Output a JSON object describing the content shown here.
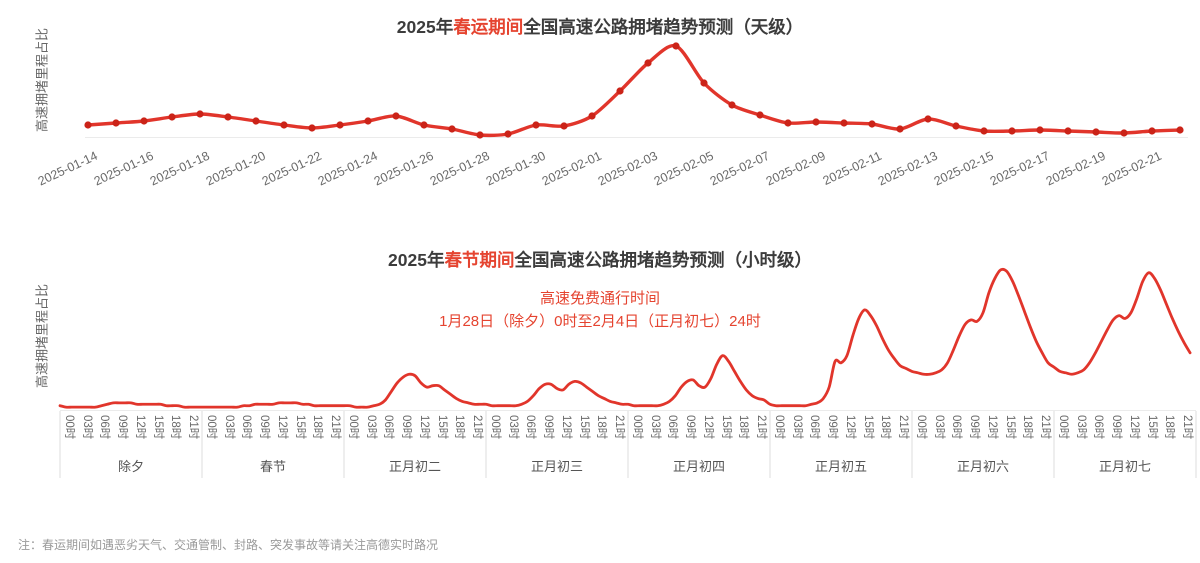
{
  "colors": {
    "title": "#3c3c3c",
    "red_text": "#e54430",
    "line": "#e1352b",
    "dot": "#cb2318",
    "tick_text": "#6a6a6a",
    "day_text": "#555555",
    "ylabel": "#666666",
    "note_text": "#9a9a9a",
    "baseline": "#ebebeb",
    "separator": "#dedede"
  },
  "note": "注：春运期间如遇恶劣天气、交通管制、封路、突发事故等请关注高德实时路况",
  "chart_data": [
    {
      "type": "line",
      "id": "daily",
      "title": "2025年春运期间全国高速公路拥堵趋势预测（天级）",
      "title_parts": {
        "prefix": "2025年",
        "highlight": "春运期间",
        "suffix": "全国高速公路拥堵趋势预测（天级）"
      },
      "ylabel": "高速拥堵里程占比",
      "grid": false,
      "ylim": [
        0,
        100
      ],
      "x": [
        "2025-01-14",
        "2025-01-15",
        "2025-01-16",
        "2025-01-17",
        "2025-01-18",
        "2025-01-19",
        "2025-01-20",
        "2025-01-21",
        "2025-01-22",
        "2025-01-23",
        "2025-01-24",
        "2025-01-25",
        "2025-01-26",
        "2025-01-27",
        "2025-01-28",
        "2025-01-29",
        "2025-01-30",
        "2025-01-31",
        "2025-02-01",
        "2025-02-02",
        "2025-02-03",
        "2025-02-04",
        "2025-02-05",
        "2025-02-06",
        "2025-02-07",
        "2025-02-08",
        "2025-02-09",
        "2025-02-10",
        "2025-02-11",
        "2025-02-12",
        "2025-02-13",
        "2025-02-14",
        "2025-02-15",
        "2025-02-16",
        "2025-02-17",
        "2025-02-18",
        "2025-02-19",
        "2025-02-20",
        "2025-02-21",
        "2025-02-22"
      ],
      "values": [
        12,
        14,
        16,
        20,
        23,
        20,
        16,
        12,
        9,
        12,
        16,
        21,
        12,
        8,
        2,
        3,
        12,
        11,
        21,
        46,
        74,
        91,
        54,
        32,
        22,
        14,
        15,
        14,
        13,
        8,
        18,
        11,
        6,
        6,
        7,
        6,
        5,
        4,
        6,
        7
      ],
      "x_tick_labels": [
        "2025-01-14",
        "2025-01-16",
        "2025-01-18",
        "2025-01-20",
        "2025-01-22",
        "2025-01-24",
        "2025-01-26",
        "2025-01-28",
        "2025-01-30",
        "2025-02-01",
        "2025-02-03",
        "2025-02-05",
        "2025-02-07",
        "2025-02-09",
        "2025-02-11",
        "2025-02-13",
        "2025-02-15",
        "2025-02-17",
        "2025-02-19",
        "2025-02-21"
      ]
    },
    {
      "type": "line",
      "id": "hourly",
      "title": "2025年春节期间全国高速公路拥堵趋势预测（小时级）",
      "title_parts": {
        "prefix": "2025年",
        "highlight": "春节期间",
        "suffix": "全国高速公路拥堵趋势预测（小时级）"
      },
      "ylabel": "高速拥堵里程占比",
      "annotation": {
        "line1": "高速免费通行时间",
        "line2": "1月28日（除夕）0时至2月4日（正月初七）24时"
      },
      "grid": false,
      "ylim": [
        0,
        100
      ],
      "hour_tick_labels": [
        "00时",
        "03时",
        "06时",
        "09时",
        "12时",
        "15时",
        "18时",
        "21时"
      ],
      "days": [
        {
          "label": "除夕",
          "values": [
            3,
            2,
            2,
            2,
            2,
            2,
            2,
            3,
            4,
            5,
            5,
            5,
            5,
            4,
            4,
            4,
            4,
            4,
            3,
            3,
            3,
            2,
            2,
            2
          ]
        },
        {
          "label": "春节",
          "values": [
            2,
            2,
            2,
            2,
            2,
            2,
            2,
            3,
            3,
            4,
            4,
            4,
            4,
            5,
            5,
            5,
            5,
            4,
            4,
            3,
            3,
            3,
            3,
            3
          ]
        },
        {
          "label": "正月初二",
          "values": [
            3,
            3,
            2,
            2,
            2,
            3,
            4,
            7,
            13,
            19,
            23,
            25,
            24,
            19,
            16,
            17,
            17,
            14,
            11,
            8,
            6,
            5,
            4,
            4
          ]
        },
        {
          "label": "正月初三",
          "values": [
            4,
            3,
            3,
            3,
            3,
            3,
            4,
            6,
            10,
            15,
            18,
            18,
            15,
            14,
            18,
            20,
            19,
            16,
            13,
            10,
            8,
            6,
            5,
            4
          ]
        },
        {
          "label": "正月初四",
          "values": [
            4,
            3,
            3,
            3,
            3,
            3,
            4,
            6,
            10,
            16,
            20,
            21,
            17,
            16,
            22,
            32,
            38,
            34,
            27,
            20,
            14,
            10,
            8,
            7
          ]
        },
        {
          "label": "正月初五",
          "values": [
            4,
            3,
            3,
            3,
            3,
            3,
            3,
            4,
            5,
            8,
            16,
            34,
            33,
            38,
            52,
            64,
            70,
            66,
            59,
            50,
            42,
            36,
            31,
            29
          ]
        },
        {
          "label": "正月初六",
          "values": [
            27,
            26,
            25,
            25,
            26,
            28,
            33,
            42,
            52,
            60,
            63,
            62,
            68,
            82,
            92,
            98,
            97,
            90,
            80,
            69,
            58,
            48,
            40,
            33
          ]
        },
        {
          "label": "正月初七",
          "values": [
            30,
            27,
            26,
            25,
            26,
            28,
            33,
            40,
            48,
            56,
            63,
            66,
            64,
            68,
            78,
            90,
            96,
            92,
            84,
            74,
            64,
            55,
            47,
            40
          ]
        }
      ]
    }
  ]
}
